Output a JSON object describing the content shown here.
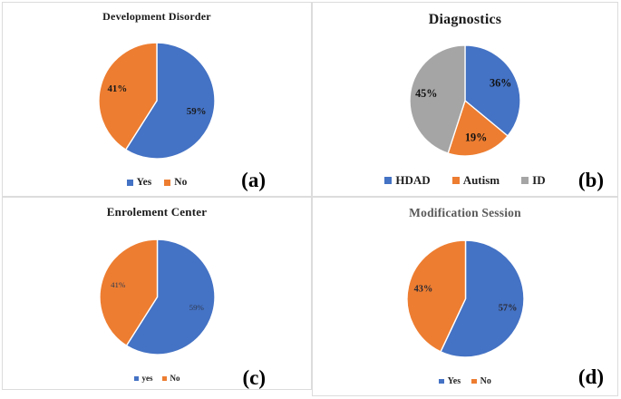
{
  "figure": {
    "description_visible_text_only": true
  },
  "chart_data": [
    {
      "type": "pie",
      "panel_label": "(a)",
      "title": "Development Disorder",
      "title_color": "#1a1a1a",
      "legend_position": "bottom",
      "start_angle_deg": 0,
      "slices": [
        {
          "label": "Yes",
          "value": 59,
          "data_label": "59%",
          "color": "#4472C4"
        },
        {
          "label": "No",
          "value": 41,
          "data_label": "41%",
          "color": "#ED7D31"
        }
      ]
    },
    {
      "type": "pie",
      "panel_label": "(b)",
      "title": "Diagnostics",
      "title_color": "#1a1a1a",
      "legend_position": "bottom",
      "start_angle_deg": 0,
      "slices": [
        {
          "label": "HDAD",
          "value": 36,
          "data_label": "36%",
          "color": "#4472C4"
        },
        {
          "label": "Autism",
          "value": 19,
          "data_label": "19%",
          "color": "#ED7D31"
        },
        {
          "label": "ID",
          "value": 45,
          "data_label": "45%",
          "color": "#A5A5A5"
        }
      ]
    },
    {
      "type": "pie",
      "panel_label": "(c)",
      "title": "Enrolement Center",
      "title_color": "#1a1a1a",
      "legend_position": "bottom",
      "start_angle_deg": 0,
      "slices": [
        {
          "label": "yes",
          "value": 59,
          "data_label": "59%",
          "color": "#4472C4"
        },
        {
          "label": "No",
          "value": 41,
          "data_label": "41%",
          "color": "#ED7D31"
        }
      ]
    },
    {
      "type": "pie",
      "panel_label": "(d)",
      "title": "Modification Session",
      "title_color": "#595959",
      "legend_position": "bottom",
      "start_angle_deg": 0,
      "slices": [
        {
          "label": "Yes",
          "value": 57,
          "data_label": "57%",
          "color": "#4472C4"
        },
        {
          "label": "No",
          "value": 43,
          "data_label": "43%",
          "color": "#ED7D31"
        }
      ]
    }
  ]
}
